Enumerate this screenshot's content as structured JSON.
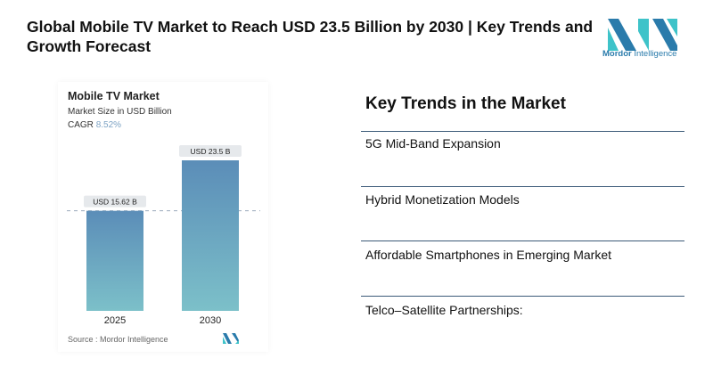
{
  "title": "Global Mobile TV Market to Reach USD 23.5 Billion by 2030 | Key Trends and Growth Forecast",
  "logo": {
    "text_bold": "Mordor",
    "text_rest": " Intelligence",
    "colors": [
      "#2a7bab",
      "#3ec3c9"
    ]
  },
  "chart_data": {
    "type": "bar",
    "title": "Mobile TV Market",
    "subtitle": "Market Size in USD Billion",
    "cagr_label": "CAGR",
    "cagr_value": "8.52%",
    "categories": [
      "2025",
      "2030"
    ],
    "values": [
      15.62,
      23.5
    ],
    "data_labels": [
      "USD 15.62 B",
      "USD 23.5 B"
    ],
    "ylim": [
      0,
      23.5
    ],
    "source": "Source :  Mordor Intelligence",
    "bar_gradient": [
      "#5b8db8",
      "#7cc0c9"
    ]
  },
  "trends": {
    "heading": "Key Trends in the Market",
    "items": [
      "5G Mid-Band Expansion",
      "Hybrid Monetization Models",
      "Affordable Smartphones in Emerging Market",
      "Telco–Satellite Partnerships:"
    ]
  }
}
